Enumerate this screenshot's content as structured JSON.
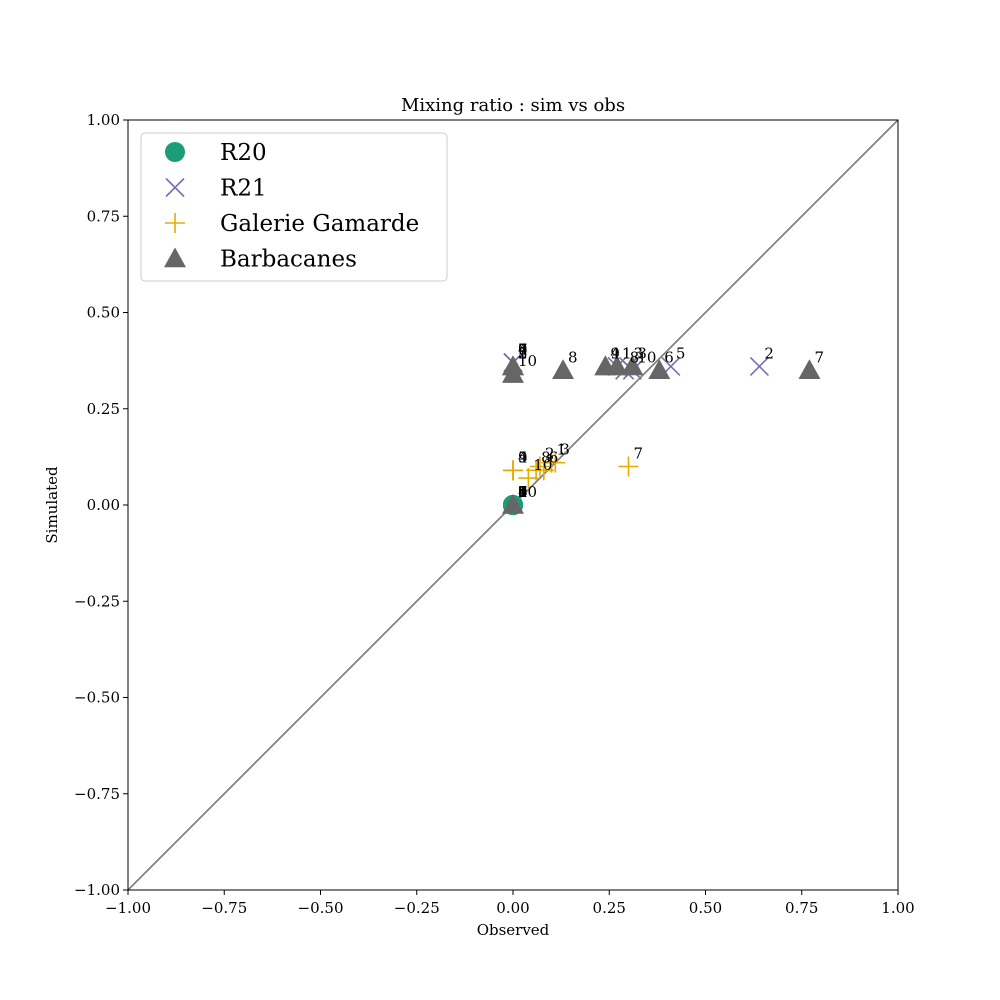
{
  "chart_data": {
    "type": "scatter",
    "title": "Mixing ratio : sim vs obs",
    "xlabel": "Observed",
    "ylabel": "Simulated",
    "xlim": [
      -1.0,
      1.0
    ],
    "ylim": [
      -1.0,
      1.0
    ],
    "xticks": [
      "−1.00",
      "−0.75",
      "−0.50",
      "−0.25",
      "0.00",
      "0.25",
      "0.50",
      "0.75",
      "1.00"
    ],
    "yticks": [
      "−1.00",
      "−0.75",
      "−0.50",
      "−0.25",
      "0.00",
      "0.25",
      "0.50",
      "0.75",
      "1.00"
    ],
    "grid": false,
    "legend_position": "top-left",
    "reference_line": {
      "from": [
        -1.0,
        -1.0
      ],
      "to": [
        1.0,
        1.0
      ],
      "color": "#808080"
    },
    "series": [
      {
        "name": "R20",
        "marker": "circle",
        "color": "#1b9e77",
        "points": [
          {
            "x": 0.0,
            "y": 0.0,
            "label": "1"
          },
          {
            "x": 0.0,
            "y": 0.0,
            "label": "2"
          },
          {
            "x": 0.0,
            "y": 0.0,
            "label": "3"
          },
          {
            "x": 0.0,
            "y": 0.0,
            "label": "4"
          },
          {
            "x": 0.0,
            "y": 0.0,
            "label": "5"
          },
          {
            "x": 0.0,
            "y": 0.0,
            "label": "6"
          },
          {
            "x": 0.0,
            "y": 0.0,
            "label": "7"
          },
          {
            "x": 0.0,
            "y": 0.0,
            "label": "8"
          },
          {
            "x": 0.0,
            "y": 0.0,
            "label": "9"
          },
          {
            "x": 0.0,
            "y": 0.0,
            "label": "10"
          }
        ]
      },
      {
        "name": "R21",
        "marker": "x",
        "color": "#7570b3",
        "points": [
          {
            "x": 0.27,
            "y": 0.36,
            "label": "1"
          },
          {
            "x": 0.64,
            "y": 0.36,
            "label": "2"
          },
          {
            "x": 0.3,
            "y": 0.36,
            "label": "3"
          },
          {
            "x": 0.0,
            "y": 0.37,
            "label": "4"
          },
          {
            "x": 0.41,
            "y": 0.36,
            "label": "5"
          },
          {
            "x": 0.0,
            "y": 0.37,
            "label": "6"
          },
          {
            "x": 0.0,
            "y": 0.37,
            "label": "7"
          },
          {
            "x": 0.29,
            "y": 0.35,
            "label": "8"
          },
          {
            "x": 0.0,
            "y": 0.37,
            "label": "9"
          },
          {
            "x": 0.31,
            "y": 0.35,
            "label": "10"
          }
        ]
      },
      {
        "name": "Galerie Gamarde",
        "marker": "plus",
        "color": "#e6ab02",
        "points": [
          {
            "x": 0.1,
            "y": 0.11,
            "label": "1"
          },
          {
            "x": 0.07,
            "y": 0.1,
            "label": "2"
          },
          {
            "x": 0.11,
            "y": 0.11,
            "label": "3"
          },
          {
            "x": 0.0,
            "y": 0.09,
            "label": "4"
          },
          {
            "x": 0.0,
            "y": 0.09,
            "label": "5"
          },
          {
            "x": 0.08,
            "y": 0.09,
            "label": "6"
          },
          {
            "x": 0.3,
            "y": 0.1,
            "label": "7"
          },
          {
            "x": 0.06,
            "y": 0.09,
            "label": "8"
          },
          {
            "x": 0.0,
            "y": 0.09,
            "label": "9"
          },
          {
            "x": 0.04,
            "y": 0.07,
            "label": "10"
          }
        ]
      },
      {
        "name": "Barbacanes",
        "marker": "triangle",
        "color": "#666666",
        "points": [
          {
            "x": 0.27,
            "y": 0.36,
            "label": "1"
          },
          {
            "x": 0.0,
            "y": 0.36,
            "label": "2"
          },
          {
            "x": 0.31,
            "y": 0.36,
            "label": "3"
          },
          {
            "x": 0.24,
            "y": 0.36,
            "label": "4"
          },
          {
            "x": 0.0,
            "y": 0.36,
            "label": "5"
          },
          {
            "x": 0.38,
            "y": 0.35,
            "label": "6"
          },
          {
            "x": 0.77,
            "y": 0.35,
            "label": "7"
          },
          {
            "x": 0.13,
            "y": 0.35,
            "label": "8"
          },
          {
            "x": 0.24,
            "y": 0.36,
            "label": "9"
          },
          {
            "x": 0.0,
            "y": 0.34,
            "label": "10"
          },
          {
            "x": 0.0,
            "y": 0.0,
            "label": ""
          }
        ]
      }
    ]
  }
}
